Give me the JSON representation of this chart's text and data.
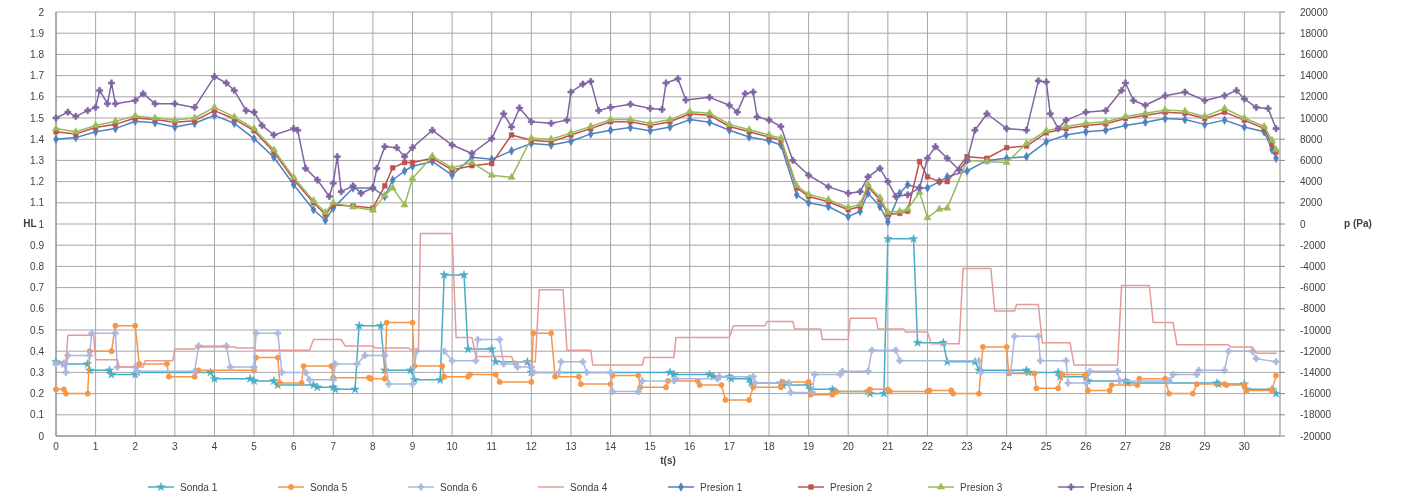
{
  "chart_data": {
    "type": "line",
    "xlabel": "t(s)",
    "ylabel": "HL",
    "y2label": "p (Pa)",
    "xlim": [
      0,
      30.9
    ],
    "xticks": [
      0,
      1,
      2,
      3,
      4,
      5,
      6,
      7,
      8,
      9,
      10,
      11,
      12,
      13,
      14,
      15,
      16,
      17,
      18,
      19,
      20,
      21,
      22,
      23,
      24,
      25,
      26,
      27,
      28,
      29,
      30
    ],
    "ylim": [
      0,
      2
    ],
    "yticks": [
      0,
      0.1,
      0.2,
      0.3,
      0.4,
      0.5,
      0.6,
      0.7,
      0.8,
      0.9,
      1,
      1.1,
      1.2,
      1.3,
      1.4,
      1.5,
      1.6,
      1.7,
      1.8,
      1.9,
      2
    ],
    "y2lim": [
      -20000,
      20000
    ],
    "y2ticks": [
      -20000,
      -18000,
      -16000,
      -14000,
      -12000,
      -10000,
      -8000,
      -6000,
      -4000,
      -2000,
      0,
      2000,
      4000,
      6000,
      8000,
      10000,
      12000,
      14000,
      16000,
      18000,
      20000
    ],
    "grid": true,
    "legend": "bottom",
    "series": [
      {
        "name": "Sonda 1",
        "color": "#4bacc6",
        "marker": "star",
        "x": [
          0,
          0.2,
          0.8,
          0.85,
          1.35,
          1.4,
          2,
          2.05,
          3.9,
          4,
          4.9,
          5,
          5.5,
          5.6,
          6.5,
          6.6,
          7,
          7.05,
          7.55,
          7.65,
          8.2,
          8.3,
          8.95,
          9.05,
          9.7,
          9.8,
          10.3,
          10.4,
          11,
          11.1,
          11.9,
          12,
          15.5,
          15.6,
          16.5,
          16.6,
          17,
          17.05,
          17.5,
          17.55,
          18.3,
          18.35,
          19,
          19.05,
          19.6,
          19.65,
          20.5,
          20.55,
          20.9,
          21,
          21.65,
          21.75,
          22.4,
          22.5,
          23.2,
          23.3,
          24.5,
          24.55,
          25.3,
          25.35,
          26,
          26.05,
          27,
          27.05,
          29.3,
          29.35,
          30,
          30.05,
          30.7,
          30.8
        ],
        "values": [
          0.35,
          0.34,
          0.34,
          0.31,
          0.31,
          0.29,
          0.29,
          0.3,
          0.3,
          0.27,
          0.27,
          0.26,
          0.26,
          0.24,
          0.24,
          0.23,
          0.23,
          0.22,
          0.22,
          0.52,
          0.52,
          0.31,
          0.31,
          0.265,
          0.265,
          0.76,
          0.76,
          0.41,
          0.41,
          0.35,
          0.35,
          0.3,
          0.3,
          0.29,
          0.29,
          0.28,
          0.28,
          0.27,
          0.27,
          0.25,
          0.25,
          0.24,
          0.24,
          0.22,
          0.22,
          0.21,
          0.21,
          0.2,
          0.2,
          0.93,
          0.93,
          0.44,
          0.44,
          0.35,
          0.35,
          0.31,
          0.31,
          0.3,
          0.3,
          0.28,
          0.28,
          0.26,
          0.26,
          0.25,
          0.25,
          0.245,
          0.245,
          0.22,
          0.22,
          0.2
        ]
      },
      {
        "name": "Sonda 5",
        "color": "#f79646",
        "marker": "circle",
        "x": [
          0,
          0.2,
          0.25,
          0.8,
          0.85,
          1.4,
          1.5,
          2,
          2.1,
          2.8,
          2.85,
          3.5,
          3.6,
          5,
          5.05,
          5.6,
          5.65,
          6.2,
          6.25,
          6.95,
          7,
          7.9,
          7.95,
          8.3,
          8.35,
          9,
          9.05,
          9.75,
          9.8,
          10.4,
          10.45,
          11.1,
          11.2,
          12,
          12.05,
          12.5,
          12.6,
          13.2,
          13.25,
          14,
          14.05,
          14.7,
          14.75,
          15.4,
          15.45,
          16.2,
          16.25,
          16.8,
          16.9,
          17.5,
          17.6,
          18.3,
          18.35,
          19,
          19.05,
          19.6,
          19.7,
          20.5,
          20.55,
          21,
          21.05,
          22,
          22.05,
          22.6,
          22.65,
          23.3,
          23.4,
          24,
          24.05,
          24.7,
          24.75,
          25.3,
          25.4,
          26,
          26.05,
          26.6,
          26.65,
          27.3,
          27.35,
          28,
          28.1,
          28.7,
          28.8,
          29.5,
          29.55,
          30,
          30.05,
          30.7,
          30.8
        ],
        "values": [
          0.22,
          0.22,
          0.2,
          0.2,
          0.4,
          0.4,
          0.52,
          0.52,
          0.34,
          0.34,
          0.28,
          0.28,
          0.31,
          0.31,
          0.37,
          0.37,
          0.25,
          0.25,
          0.33,
          0.33,
          0.275,
          0.275,
          0.27,
          0.27,
          0.535,
          0.535,
          0.33,
          0.33,
          0.28,
          0.28,
          0.29,
          0.29,
          0.255,
          0.255,
          0.485,
          0.485,
          0.28,
          0.28,
          0.245,
          0.245,
          0.285,
          0.285,
          0.23,
          0.23,
          0.26,
          0.26,
          0.24,
          0.24,
          0.17,
          0.17,
          0.23,
          0.23,
          0.255,
          0.255,
          0.195,
          0.195,
          0.21,
          0.21,
          0.22,
          0.22,
          0.21,
          0.21,
          0.215,
          0.215,
          0.2,
          0.2,
          0.42,
          0.42,
          0.295,
          0.295,
          0.225,
          0.225,
          0.29,
          0.29,
          0.215,
          0.215,
          0.24,
          0.24,
          0.27,
          0.27,
          0.2,
          0.2,
          0.245,
          0.245,
          0.24,
          0.24,
          0.215,
          0.215,
          0.285
        ]
      },
      {
        "name": "Sonda 6",
        "color": "#a9b8e0",
        "marker": "cross",
        "x": [
          0,
          0.2,
          0.25,
          0.3,
          0.85,
          0.9,
          1.5,
          1.55,
          2,
          2.05,
          3.5,
          3.6,
          4.3,
          4.4,
          5,
          5.05,
          5.6,
          5.7,
          6.3,
          6.4,
          7,
          7.05,
          7.6,
          7.8,
          8.3,
          8.4,
          9,
          9.1,
          9.8,
          10,
          10.6,
          10.65,
          11.2,
          11.3,
          11.6,
          11.65,
          12,
          12.05,
          12.7,
          12.75,
          13.3,
          13.4,
          14,
          14.05,
          14.7,
          14.8,
          15.6,
          15.65,
          16.7,
          16.75,
          17.6,
          17.65,
          18.5,
          18.55,
          19.1,
          19.15,
          19.8,
          19.85,
          20.5,
          20.6,
          21.2,
          21.3,
          23.3,
          23.35,
          24.1,
          24.2,
          24.8,
          24.85,
          25.5,
          25.55,
          26,
          26.1,
          26.8,
          26.85,
          28.1,
          28.2,
          28.8,
          28.85,
          29.5,
          29.6,
          30.2,
          30.3,
          30.8
        ],
        "values": [
          0.34,
          0.34,
          0.3,
          0.38,
          0.38,
          0.485,
          0.485,
          0.325,
          0.325,
          0.305,
          0.305,
          0.425,
          0.425,
          0.325,
          0.325,
          0.485,
          0.485,
          0.3,
          0.3,
          0.265,
          0.265,
          0.34,
          0.34,
          0.38,
          0.38,
          0.245,
          0.245,
          0.4,
          0.4,
          0.355,
          0.355,
          0.455,
          0.455,
          0.34,
          0.34,
          0.325,
          0.325,
          0.3,
          0.3,
          0.35,
          0.35,
          0.3,
          0.3,
          0.21,
          0.21,
          0.26,
          0.26,
          0.27,
          0.27,
          0.28,
          0.28,
          0.25,
          0.25,
          0.205,
          0.205,
          0.29,
          0.29,
          0.305,
          0.305,
          0.405,
          0.405,
          0.355,
          0.355,
          0.3,
          0.3,
          0.47,
          0.47,
          0.355,
          0.355,
          0.25,
          0.25,
          0.305,
          0.305,
          0.26,
          0.26,
          0.29,
          0.29,
          0.31,
          0.31,
          0.4,
          0.4,
          0.365,
          0.35
        ]
      },
      {
        "name": "Sonda 4",
        "color": "#e69a9a",
        "marker": "none",
        "x": [
          0,
          0.25,
          0.3,
          0.95,
          1,
          1.55,
          1.6,
          2.2,
          2.25,
          2.95,
          3,
          3.5,
          3.55,
          4.5,
          4.55,
          5,
          5.05,
          6.4,
          6.5,
          7.2,
          7.3,
          8,
          8.05,
          8.9,
          9,
          9.15,
          9.2,
          10,
          10.1,
          10.5,
          10.6,
          11.5,
          11.55,
          12.1,
          12.2,
          12.8,
          12.9,
          13.5,
          13.55,
          14.8,
          14.85,
          15.6,
          15.65,
          17,
          17.1,
          17.9,
          17.95,
          18.6,
          18.65,
          19.3,
          19.35,
          20,
          20.05,
          20.7,
          20.75,
          21.4,
          21.45,
          22,
          22.1,
          22.8,
          22.9,
          23.6,
          23.7,
          24.2,
          24.25,
          24.8,
          24.9,
          25.6,
          25.7,
          26.8,
          26.9,
          27.6,
          27.7,
          28.2,
          28.3,
          29.6,
          29.65,
          30.2,
          30.3,
          30.8
        ],
        "values": [
          0.35,
          0.35,
          0.475,
          0.475,
          0.36,
          0.36,
          0.325,
          0.325,
          0.355,
          0.355,
          0.41,
          0.41,
          0.42,
          0.42,
          0.415,
          0.415,
          0.405,
          0.405,
          0.455,
          0.455,
          0.425,
          0.425,
          0.415,
          0.415,
          0.4,
          0.4,
          0.955,
          0.955,
          0.465,
          0.465,
          0.375,
          0.375,
          0.35,
          0.35,
          0.69,
          0.69,
          0.405,
          0.405,
          0.335,
          0.335,
          0.37,
          0.37,
          0.465,
          0.465,
          0.52,
          0.52,
          0.54,
          0.54,
          0.505,
          0.505,
          0.455,
          0.455,
          0.555,
          0.555,
          0.505,
          0.505,
          0.49,
          0.49,
          0.435,
          0.435,
          0.79,
          0.79,
          0.59,
          0.59,
          0.62,
          0.62,
          0.44,
          0.44,
          0.335,
          0.335,
          0.71,
          0.71,
          0.535,
          0.535,
          0.43,
          0.43,
          0.42,
          0.42,
          0.39,
          0.39
        ]
      },
      {
        "name": "Presion 1",
        "color": "#4f81bd",
        "marker": "diamond",
        "axis": "y2",
        "x": [
          0,
          0.5,
          1,
          1.5,
          2,
          2.5,
          3,
          3.5,
          4,
          4.5,
          5,
          5.5,
          6,
          6.5,
          6.8,
          7,
          7.5,
          8,
          8.3,
          8.5,
          8.8,
          9,
          9.5,
          10,
          10.5,
          11,
          11.5,
          12,
          12.5,
          13,
          13.5,
          14,
          14.5,
          15,
          15.5,
          16,
          16.5,
          17,
          17.5,
          18,
          18.3,
          18.7,
          19,
          19.5,
          20,
          20.3,
          20.5,
          20.8,
          21,
          21.3,
          21.5,
          21.8,
          22,
          22.3,
          22.5,
          23,
          23.5,
          24,
          24.5,
          25,
          25.5,
          26,
          26.5,
          27,
          27.5,
          28,
          28.5,
          29,
          29.5,
          30,
          30.5,
          30.7,
          30.8
        ],
        "values": [
          8000,
          8150,
          8700,
          9000,
          9700,
          9550,
          9150,
          9500,
          10250,
          9500,
          8050,
          6300,
          3700,
          1350,
          350,
          1500,
          3400,
          3400,
          2600,
          4150,
          5000,
          5450,
          5900,
          4600,
          6300,
          6100,
          6900,
          7600,
          7450,
          7800,
          8500,
          8850,
          9100,
          8800,
          9150,
          9850,
          9600,
          8850,
          8200,
          7850,
          7450,
          2750,
          2000,
          1650,
          700,
          1200,
          2900,
          1650,
          200,
          2900,
          3700,
          3400,
          3400,
          4000,
          4450,
          5000,
          6000,
          6200,
          6350,
          7750,
          8400,
          8700,
          8850,
          9300,
          9600,
          9950,
          9850,
          9400,
          9800,
          9150,
          8700,
          7000,
          6200
        ]
      },
      {
        "name": "Presion 2",
        "color": "#c0504d",
        "marker": "square",
        "axis": "y2",
        "x": [
          0,
          0.5,
          1,
          1.5,
          2,
          2.5,
          3,
          3.5,
          4,
          4.5,
          5,
          5.5,
          6,
          6.5,
          6.8,
          7,
          7.5,
          8,
          8.3,
          8.5,
          8.8,
          9,
          9.5,
          10,
          10.5,
          11,
          11.5,
          12,
          12.5,
          13,
          13.5,
          14,
          14.5,
          15,
          15.5,
          16,
          16.5,
          17,
          17.5,
          18,
          18.3,
          18.7,
          19,
          19.5,
          20,
          20.3,
          20.5,
          20.8,
          21,
          21.3,
          21.5,
          21.8,
          22,
          22.3,
          22.5,
          23,
          23.5,
          24,
          24.5,
          25,
          25.5,
          26,
          26.5,
          27,
          27.5,
          28,
          28.5,
          29,
          29.5,
          30,
          30.5,
          30.7,
          30.8
        ],
        "values": [
          8700,
          8500,
          9100,
          9400,
          10000,
          9850,
          9600,
          9750,
          10700,
          9900,
          8800,
          6800,
          4200,
          2000,
          900,
          1800,
          1700,
          1500,
          3600,
          5300,
          5800,
          5800,
          6200,
          5100,
          5500,
          5700,
          8400,
          7900,
          7750,
          8400,
          9000,
          9650,
          9650,
          9300,
          9650,
          10400,
          10250,
          9200,
          8700,
          8200,
          7900,
          3400,
          2600,
          2100,
          1350,
          1650,
          3500,
          2300,
          900,
          1000,
          1200,
          5900,
          4450,
          4000,
          4000,
          6350,
          6200,
          7200,
          7350,
          8600,
          9000,
          9300,
          9450,
          9950,
          10250,
          10550,
          10450,
          9950,
          10550,
          9800,
          9000,
          7450,
          6800
        ]
      },
      {
        "name": "Presion 3",
        "color": "#9bbb59",
        "marker": "triangle",
        "axis": "y2",
        "x": [
          0,
          0.5,
          1,
          1.5,
          2,
          2.5,
          3,
          3.5,
          4,
          4.5,
          5,
          5.5,
          6,
          6.5,
          6.8,
          7,
          7.5,
          8,
          8.3,
          8.5,
          8.8,
          9,
          9.5,
          10,
          10.5,
          11,
          11.5,
          12,
          12.5,
          13,
          13.5,
          14,
          14.5,
          15,
          15.5,
          16,
          16.5,
          17,
          17.5,
          18,
          18.3,
          18.7,
          19,
          19.5,
          20,
          20.3,
          20.5,
          20.8,
          21,
          21.3,
          21.5,
          21.8,
          22,
          22.3,
          22.5,
          23,
          23.5,
          24,
          24.5,
          25,
          25.5,
          26,
          26.5,
          27,
          27.5,
          28,
          28.5,
          29,
          29.5,
          30,
          30.5,
          30.7,
          30.8
        ],
        "values": [
          9000,
          8700,
          9300,
          9700,
          10200,
          10000,
          9800,
          10000,
          11000,
          10100,
          9000,
          7000,
          4400,
          2200,
          1100,
          2000,
          1600,
          1300,
          2700,
          3400,
          1800,
          4300,
          6400,
          5300,
          5800,
          4600,
          4400,
          8100,
          8000,
          8600,
          9200,
          9850,
          9850,
          9500,
          9850,
          10600,
          10450,
          9400,
          8900,
          8400,
          8100,
          3600,
          2800,
          2300,
          1550,
          1850,
          3700,
          2500,
          1100,
          1200,
          1400,
          3000,
          600,
          1400,
          1500,
          6000,
          5900,
          5800,
          7600,
          8800,
          9200,
          9500,
          9650,
          10150,
          10450,
          10750,
          10650,
          10150,
          10900,
          10000,
          9200,
          7900,
          7000
        ]
      },
      {
        "name": "Presion 4",
        "color": "#8064a2",
        "marker": "cross",
        "axis": "y2",
        "x": [
          0,
          0.3,
          0.5,
          0.8,
          1,
          1.1,
          1.3,
          1.4,
          1.5,
          2,
          2.2,
          2.5,
          3,
          3.5,
          4,
          4.3,
          4.5,
          4.8,
          5,
          5.2,
          5.5,
          6,
          6.1,
          6.3,
          6.6,
          6.9,
          7,
          7.1,
          7.2,
          7.5,
          7.7,
          8,
          8.1,
          8.3,
          8.6,
          8.8,
          9,
          9.5,
          10,
          10.5,
          11,
          11.3,
          11.5,
          11.7,
          12,
          12.5,
          12.9,
          13,
          13.3,
          13.5,
          13.7,
          14,
          14.5,
          15,
          15.3,
          15.4,
          15.7,
          15.9,
          16.5,
          17,
          17.2,
          17.4,
          17.6,
          17.7,
          18,
          18.3,
          18.6,
          19,
          19.5,
          20,
          20.3,
          20.5,
          20.8,
          21,
          21.2,
          21.5,
          21.8,
          22,
          22.2,
          22.5,
          22.8,
          23,
          23.2,
          23.5,
          24,
          24.5,
          24.8,
          25,
          25.1,
          25.3,
          25.5,
          26,
          26.5,
          26.9,
          27,
          27.2,
          27.5,
          28,
          28.5,
          29,
          29.5,
          29.8,
          30,
          30.3,
          30.6,
          30.8
        ],
        "values": [
          10000,
          10550,
          10150,
          10700,
          11000,
          12600,
          11350,
          13300,
          11350,
          11650,
          12300,
          11350,
          11350,
          11000,
          13900,
          13300,
          12600,
          10700,
          10550,
          9300,
          8400,
          9000,
          8850,
          5250,
          4150,
          2600,
          3850,
          6350,
          3050,
          3600,
          2900,
          3400,
          5250,
          7300,
          7200,
          6350,
          7200,
          8850,
          7450,
          6650,
          8050,
          10400,
          9150,
          10950,
          9650,
          9500,
          9800,
          12450,
          13200,
          13450,
          10700,
          11000,
          11300,
          10900,
          10800,
          13300,
          13700,
          11700,
          11950,
          11200,
          10550,
          12300,
          12450,
          10100,
          9800,
          9200,
          6000,
          4600,
          3500,
          2900,
          3050,
          4450,
          5250,
          4000,
          2600,
          2750,
          3400,
          6200,
          7300,
          6200,
          5100,
          6000,
          8850,
          10400,
          9000,
          8850,
          13500,
          13400,
          10400,
          9000,
          9800,
          10550,
          10700,
          12600,
          13300,
          11650,
          11200,
          12100,
          12450,
          11650,
          12100,
          12600,
          11800,
          11000,
          10900,
          9000
        ]
      }
    ]
  }
}
